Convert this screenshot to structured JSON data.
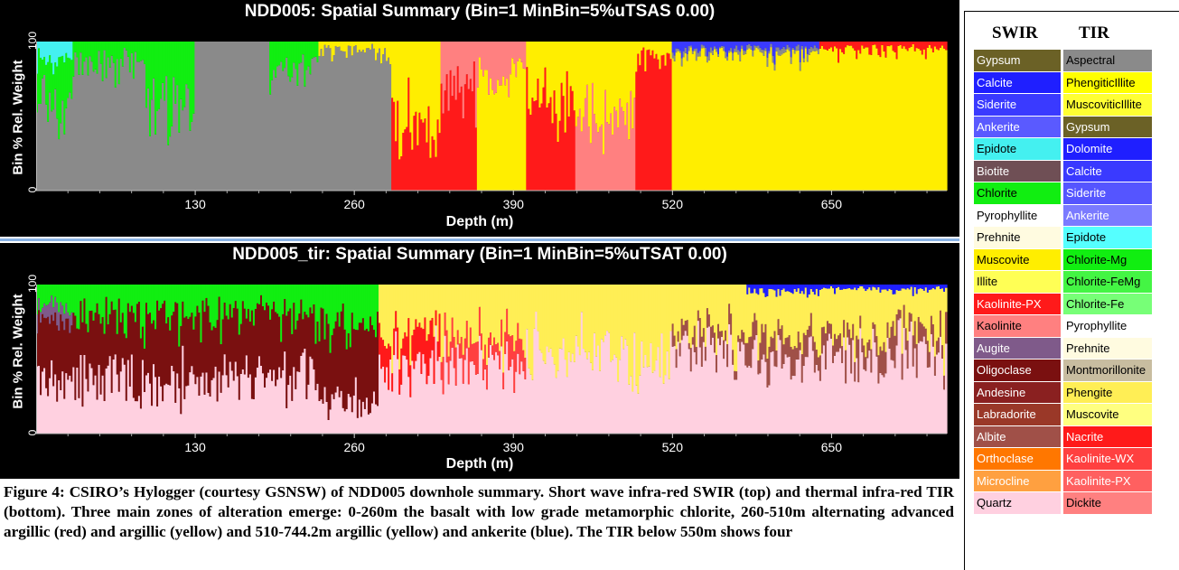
{
  "chart_data": [
    {
      "type": "area",
      "title": "NDD005: Spatial Summary (Bin=1 MinBin=5%uTSAS 0.00)",
      "xlabel": "Depth (m)",
      "ylabel": "Bin % Rel. Weight",
      "xticks": [
        130,
        260,
        390,
        520,
        650
      ],
      "yticks": [
        0,
        100
      ],
      "xlim": [
        0,
        744.2
      ],
      "ylim": [
        0,
        100
      ],
      "stacked": true,
      "zones": [
        {
          "from": 0,
          "to": 30,
          "mix": {
            "Aspectral": 60,
            "Chlorite": 30,
            "Epidote": 10
          }
        },
        {
          "from": 30,
          "to": 90,
          "mix": {
            "Aspectral": 85,
            "Chlorite": 15
          }
        },
        {
          "from": 90,
          "to": 130,
          "mix": {
            "Aspectral": 55,
            "Chlorite": 45
          }
        },
        {
          "from": 130,
          "to": 190,
          "mix": {
            "Aspectral": 100
          }
        },
        {
          "from": 190,
          "to": 230,
          "mix": {
            "Aspectral": 85,
            "Chlorite": 15
          }
        },
        {
          "from": 230,
          "to": 290,
          "mix": {
            "Aspectral": 95,
            "Muscovite": 5
          }
        },
        {
          "from": 290,
          "to": 330,
          "mix": {
            "Kaolinite-PX": 50,
            "Muscovite": 50
          }
        },
        {
          "from": 330,
          "to": 360,
          "mix": {
            "Kaolinite-PX": 70,
            "Kaolinite": 30
          }
        },
        {
          "from": 360,
          "to": 400,
          "mix": {
            "Muscovite": 80,
            "Kaolinite": 20
          }
        },
        {
          "from": 400,
          "to": 440,
          "mix": {
            "Kaolinite-PX": 60,
            "Muscovite": 40
          }
        },
        {
          "from": 440,
          "to": 490,
          "mix": {
            "Kaolinite": 50,
            "Muscovite": 50
          }
        },
        {
          "from": 490,
          "to": 520,
          "mix": {
            "Kaolinite-PX": 90,
            "Muscovite": 10
          }
        },
        {
          "from": 520,
          "to": 640,
          "mix": {
            "Muscovite": 92,
            "Aspectral": 3,
            "Siderite": 5
          }
        },
        {
          "from": 640,
          "to": 744.2,
          "mix": {
            "Muscovite": 95,
            "Kaolinite-PX": 5
          }
        }
      ]
    },
    {
      "type": "area",
      "title": "NDD005_tir: Spatial Summary (Bin=1 MinBin=5%uTSAT 0.00)",
      "xlabel": "Depth (m)",
      "ylabel": "Bin % Rel. Weight",
      "xticks": [
        130,
        260,
        390,
        520,
        650
      ],
      "yticks": [
        0,
        100
      ],
      "xlim": [
        0,
        744.2
      ],
      "ylim": [
        0,
        100
      ],
      "stacked": true,
      "zones": [
        {
          "from": 0,
          "to": 30,
          "mix": {
            "Quartz": 40,
            "Oligoclase": 35,
            "Augite": 10,
            "Chlorite-Mg": 15
          }
        },
        {
          "from": 30,
          "to": 130,
          "mix": {
            "Quartz": 35,
            "Oligoclase": 45,
            "Chlorite-Mg": 20
          }
        },
        {
          "from": 130,
          "to": 230,
          "mix": {
            "Quartz": 40,
            "Oligoclase": 40,
            "Chlorite-Mg": 20
          }
        },
        {
          "from": 230,
          "to": 280,
          "mix": {
            "Quartz": 20,
            "Oligoclase": 50,
            "Chlorite-Mg": 30
          }
        },
        {
          "from": 280,
          "to": 330,
          "mix": {
            "Quartz": 45,
            "Kaolinite-PX": 20,
            "Phengite": 35
          }
        },
        {
          "from": 330,
          "to": 400,
          "mix": {
            "Quartz": 50,
            "Kaolinite-WX": 15,
            "Phengite": 35
          }
        },
        {
          "from": 400,
          "to": 520,
          "mix": {
            "Quartz": 55,
            "Phengite": 45
          }
        },
        {
          "from": 520,
          "to": 580,
          "mix": {
            "Quartz": 55,
            "Albite": 10,
            "Phengite": 35
          }
        },
        {
          "from": 580,
          "to": 640,
          "mix": {
            "Quartz": 50,
            "Albite": 15,
            "Phengite": 30,
            "Dolomite": 5
          }
        },
        {
          "from": 640,
          "to": 744.2,
          "mix": {
            "Quartz": 55,
            "Albite": 12,
            "Phengite": 30,
            "Dolomite": 3
          }
        }
      ]
    }
  ],
  "caption": "Figure 4: CSIRO’s Hylogger (courtesy GSNSW) of NDD005 downhole summary. Short wave infra-red SWIR (top) and thermal infra-red TIR (bottom). Three main zones of alteration emerge: 0-260m the basalt with low grade metamorphic chlorite, 260-510m alternating advanced argillic (red) and argillic (yellow) and 510-744.2m argillic (yellow) and ankerite (blue). The TIR below 550m shows four",
  "legend": {
    "swir_header": "SWIR",
    "tir_header": "TIR",
    "swir": [
      {
        "label": "Gypsum",
        "color": "#6b6126",
        "text": "#ffffff"
      },
      {
        "label": "Calcite",
        "color": "#1f1fff",
        "text": "#ffffff"
      },
      {
        "label": "Siderite",
        "color": "#3a3aff",
        "text": "#ffffff"
      },
      {
        "label": "Ankerite",
        "color": "#5a5aff",
        "text": "#ffffff"
      },
      {
        "label": "Epidote",
        "color": "#44f0f0",
        "text": "#000000"
      },
      {
        "label": "Biotite",
        "color": "#6f4f55",
        "text": "#ffffff"
      },
      {
        "label": "Chlorite",
        "color": "#11ee11",
        "text": "#000000"
      },
      {
        "label": "Pyrophyllite",
        "color": "#ffffff",
        "text": "#000000"
      },
      {
        "label": "Prehnite",
        "color": "#fffbe0",
        "text": "#000000"
      },
      {
        "label": "Muscovite",
        "color": "#ffee00",
        "text": "#000000"
      },
      {
        "label": "Illite",
        "color": "#ffff55",
        "text": "#000000"
      },
      {
        "label": "Kaolinite-PX",
        "color": "#ff1a1a",
        "text": "#ffffff"
      },
      {
        "label": "Kaolinite",
        "color": "#ff8080",
        "text": "#000000"
      },
      {
        "label": "Augite",
        "color": "#7f5a8a",
        "text": "#ffffff"
      },
      {
        "label": "Oligoclase",
        "color": "#7a1010",
        "text": "#ffffff"
      },
      {
        "label": "Andesine",
        "color": "#8a2020",
        "text": "#ffffff"
      },
      {
        "label": "Labradorite",
        "color": "#9a3828",
        "text": "#ffffff"
      },
      {
        "label": "Albite",
        "color": "#a05048",
        "text": "#ffffff"
      },
      {
        "label": "Orthoclase",
        "color": "#ff7700",
        "text": "#ffffff"
      },
      {
        "label": "Microcline",
        "color": "#ffa040",
        "text": "#ffffff"
      },
      {
        "label": "Quartz",
        "color": "#ffd0e0",
        "text": "#000000"
      }
    ],
    "tir": [
      {
        "label": "Aspectral",
        "color": "#8a8a8a",
        "text": "#000000"
      },
      {
        "label": "PhengiticIllite",
        "color": "#ffff00",
        "text": "#000000"
      },
      {
        "label": "MuscoviticIllite",
        "color": "#ffff33",
        "text": "#000000"
      },
      {
        "label": "Gypsum",
        "color": "#6b6126",
        "text": "#ffffff"
      },
      {
        "label": "Dolomite",
        "color": "#1f1fff",
        "text": "#ffffff"
      },
      {
        "label": "Calcite",
        "color": "#3a3aff",
        "text": "#ffffff"
      },
      {
        "label": "Siderite",
        "color": "#5555ff",
        "text": "#ffffff"
      },
      {
        "label": "Ankerite",
        "color": "#7a7aff",
        "text": "#ffffff"
      },
      {
        "label": "Epidote",
        "color": "#55ffff",
        "text": "#000000"
      },
      {
        "label": "Chlorite-Mg",
        "color": "#11ee11",
        "text": "#000000"
      },
      {
        "label": "Chlorite-FeMg",
        "color": "#44f544",
        "text": "#000000"
      },
      {
        "label": "Chlorite-Fe",
        "color": "#77ff77",
        "text": "#000000"
      },
      {
        "label": "Pyrophyllite",
        "color": "#ffffff",
        "text": "#000000"
      },
      {
        "label": "Prehnite",
        "color": "#fffbe0",
        "text": "#000000"
      },
      {
        "label": "Montmorillonite",
        "color": "#c8bda0",
        "text": "#000000"
      },
      {
        "label": "Phengite",
        "color": "#ffee55",
        "text": "#000000"
      },
      {
        "label": "Muscovite",
        "color": "#ffff80",
        "text": "#000000"
      },
      {
        "label": "Nacrite",
        "color": "#ff1a1a",
        "text": "#ffffff"
      },
      {
        "label": "Kaolinite-WX",
        "color": "#ff4040",
        "text": "#ffffff"
      },
      {
        "label": "Kaolinite-PX",
        "color": "#ff6060",
        "text": "#ffffff"
      },
      {
        "label": "Dickite",
        "color": "#ff8080",
        "text": "#000000"
      }
    ]
  }
}
